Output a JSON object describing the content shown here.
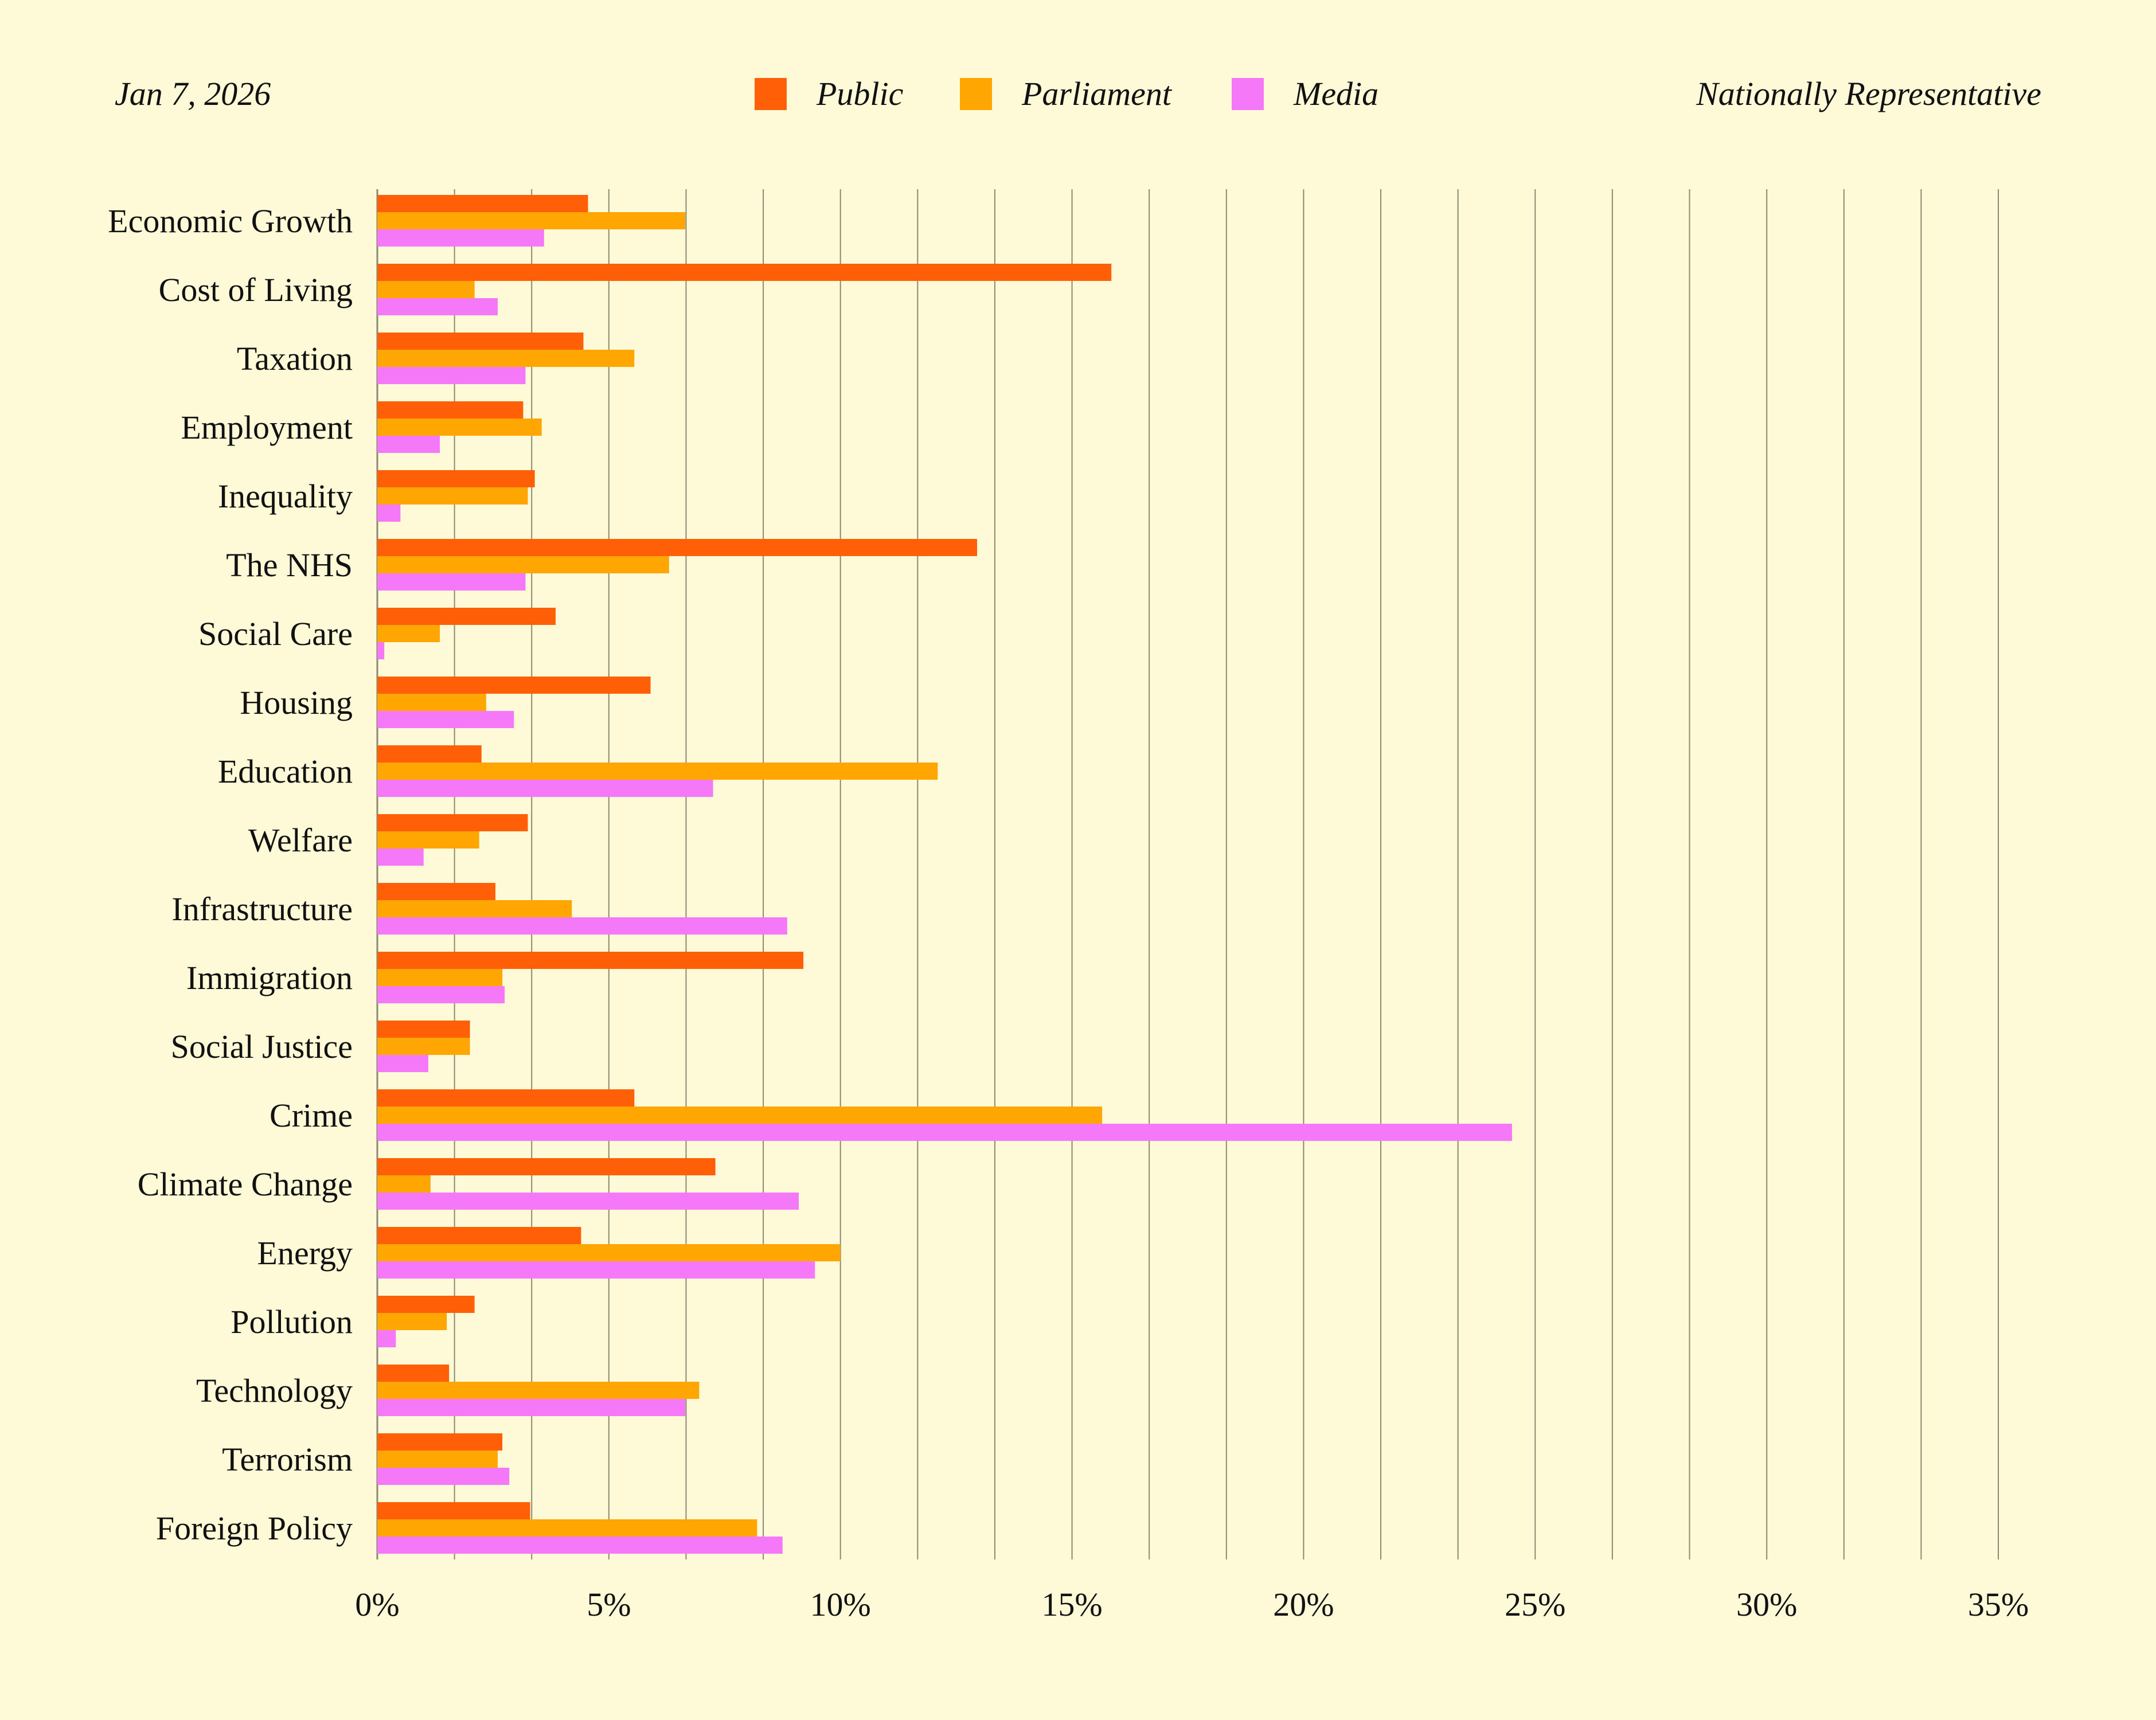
{
  "header": {
    "date": "Jan 7, 2026",
    "sample": "Nationally Representative"
  },
  "colors": {
    "background": "#fefad7",
    "public": "#ff5f06",
    "parliament": "#ffa602",
    "media": "#f478f7",
    "grid": "#8a8a74"
  },
  "chart_data": {
    "type": "bar",
    "orientation": "horizontal",
    "categories": [
      "Economic Growth",
      "Cost of Living",
      "Taxation",
      "Employment",
      "Inequality",
      "The NHS",
      "Social Care",
      "Housing",
      "Education",
      "Welfare",
      "Infrastructure",
      "Immigration",
      "Social Justice",
      "Crime",
      "Climate Change",
      "Energy",
      "Pollution",
      "Technology",
      "Terrorism",
      "Foreign Policy"
    ],
    "series": [
      {
        "name": "Public",
        "color": "#ff5f06",
        "values": [
          4.55,
          15.85,
          4.45,
          3.15,
          3.4,
          12.95,
          3.85,
          5.9,
          2.25,
          3.25,
          2.55,
          9.2,
          2.0,
          5.55,
          7.3,
          4.4,
          2.1,
          1.55,
          2.7,
          3.3
        ]
      },
      {
        "name": "Parliament",
        "color": "#ffa602",
        "values": [
          6.65,
          2.1,
          5.55,
          3.55,
          3.25,
          6.3,
          1.35,
          2.35,
          12.1,
          2.2,
          4.2,
          2.7,
          2.0,
          15.65,
          1.15,
          10.0,
          1.5,
          6.95,
          2.6,
          8.2
        ]
      },
      {
        "name": "Media",
        "color": "#f478f7",
        "values": [
          3.6,
          2.6,
          3.2,
          1.35,
          0.5,
          3.2,
          0.15,
          2.95,
          7.25,
          1.0,
          8.85,
          2.75,
          1.1,
          24.5,
          9.1,
          9.45,
          0.4,
          6.65,
          2.85,
          8.75
        ]
      }
    ],
    "x_ticks": [
      "0%",
      "5%",
      "10%",
      "15%",
      "20%",
      "25%",
      "30%",
      "35%"
    ],
    "xlim": [
      0,
      35
    ],
    "grid": true,
    "legend_position": "top-center"
  }
}
